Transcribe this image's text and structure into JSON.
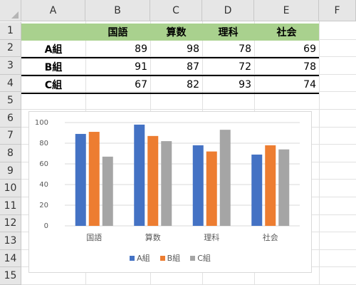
{
  "columns": [
    "A",
    "B",
    "C",
    "D",
    "E",
    "F"
  ],
  "rows": [
    "1",
    "2",
    "3",
    "4",
    "5",
    "6",
    "7",
    "8",
    "9",
    "10",
    "11",
    "12",
    "13",
    "14",
    "15"
  ],
  "table": {
    "headers": [
      "",
      "国語",
      "算数",
      "理科",
      "社会"
    ],
    "rows": [
      {
        "label": "A組",
        "values": [
          "89",
          "98",
          "78",
          "69"
        ]
      },
      {
        "label": "B組",
        "values": [
          "91",
          "87",
          "72",
          "78"
        ]
      },
      {
        "label": "C組",
        "values": [
          "67",
          "82",
          "93",
          "74"
        ]
      }
    ]
  },
  "chart_data": {
    "type": "bar",
    "categories": [
      "国語",
      "算数",
      "理科",
      "社会"
    ],
    "series": [
      {
        "name": "A組",
        "values": [
          89,
          98,
          78,
          69
        ],
        "color": "#4472c4"
      },
      {
        "name": "B組",
        "values": [
          91,
          87,
          72,
          78
        ],
        "color": "#ed7d31"
      },
      {
        "name": "C組",
        "values": [
          67,
          82,
          93,
          74
        ],
        "color": "#a5a5a5"
      }
    ],
    "ylim": [
      0,
      100
    ],
    "yticks": [
      "0",
      "20",
      "40",
      "60",
      "80",
      "100"
    ],
    "grid": true,
    "legend": "bottom"
  },
  "colors": {
    "header_fill": "#a9d18e"
  }
}
